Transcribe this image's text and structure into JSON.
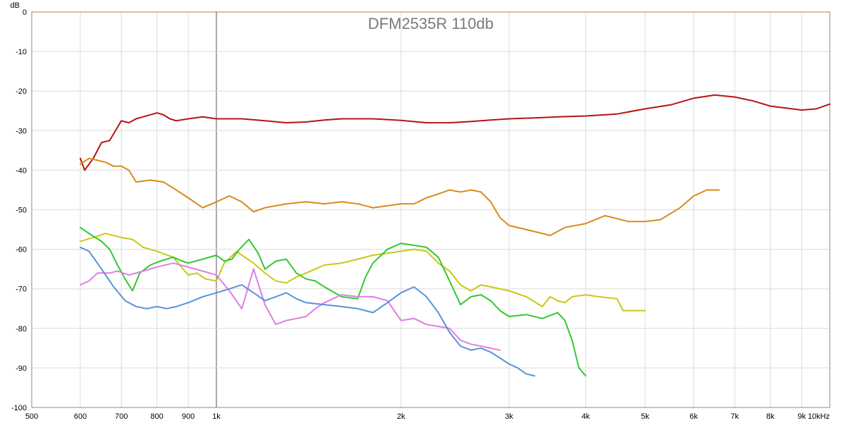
{
  "chart_data": {
    "type": "line",
    "title": "DFM2535R 110db",
    "ylabel": "dB",
    "xscale": "log",
    "xlim": [
      500,
      10000
    ],
    "ylim": [
      -100,
      0
    ],
    "grid": true,
    "x_ticks": [
      {
        "v": 500,
        "label": "500"
      },
      {
        "v": 600,
        "label": "600"
      },
      {
        "v": 700,
        "label": "700"
      },
      {
        "v": 800,
        "label": "800"
      },
      {
        "v": 900,
        "label": "900"
      },
      {
        "v": 1000,
        "label": "1k"
      },
      {
        "v": 2000,
        "label": "2k"
      },
      {
        "v": 3000,
        "label": "3k"
      },
      {
        "v": 4000,
        "label": "4k"
      },
      {
        "v": 5000,
        "label": "5k"
      },
      {
        "v": 6000,
        "label": "6k"
      },
      {
        "v": 7000,
        "label": "7k"
      },
      {
        "v": 8000,
        "label": "8k"
      },
      {
        "v": 9000,
        "label": "9k"
      },
      {
        "v": 10000,
        "label": "10kHz"
      }
    ],
    "y_ticks": [
      {
        "v": 0,
        "label": "0"
      },
      {
        "v": -10,
        "label": "-10"
      },
      {
        "v": -20,
        "label": "-20"
      },
      {
        "v": -30,
        "label": "-30"
      },
      {
        "v": -40,
        "label": "-40"
      },
      {
        "v": -50,
        "label": "-50"
      },
      {
        "v": -60,
        "label": "-60"
      },
      {
        "v": -70,
        "label": "-70"
      },
      {
        "v": -80,
        "label": "-80"
      },
      {
        "v": -90,
        "label": "-90"
      },
      {
        "v": -100,
        "label": "-100"
      }
    ],
    "series": [
      {
        "color": "#b41414",
        "points": [
          [
            600,
            -37
          ],
          [
            610,
            -40
          ],
          [
            630,
            -37
          ],
          [
            650,
            -33
          ],
          [
            670,
            -32.5
          ],
          [
            700,
            -27.5
          ],
          [
            720,
            -28
          ],
          [
            740,
            -27
          ],
          [
            760,
            -26.5
          ],
          [
            780,
            -26
          ],
          [
            800,
            -25.5
          ],
          [
            820,
            -26
          ],
          [
            840,
            -27
          ],
          [
            860,
            -27.5
          ],
          [
            900,
            -27
          ],
          [
            950,
            -26.5
          ],
          [
            1000,
            -27
          ],
          [
            1100,
            -27
          ],
          [
            1200,
            -27.5
          ],
          [
            1300,
            -28
          ],
          [
            1400,
            -27.8
          ],
          [
            1500,
            -27.3
          ],
          [
            1600,
            -27
          ],
          [
            1700,
            -27
          ],
          [
            1800,
            -27
          ],
          [
            1900,
            -27.2
          ],
          [
            2000,
            -27.4
          ],
          [
            2200,
            -28
          ],
          [
            2400,
            -28
          ],
          [
            2600,
            -27.7
          ],
          [
            2800,
            -27.3
          ],
          [
            3000,
            -27
          ],
          [
            3300,
            -26.8
          ],
          [
            3600,
            -26.5
          ],
          [
            4000,
            -26.3
          ],
          [
            4500,
            -25.8
          ],
          [
            5000,
            -24.5
          ],
          [
            5500,
            -23.5
          ],
          [
            6000,
            -21.8
          ],
          [
            6500,
            -21
          ],
          [
            7000,
            -21.5
          ],
          [
            7500,
            -22.5
          ],
          [
            8000,
            -23.8
          ],
          [
            9000,
            -24.8
          ],
          [
            9500,
            -24.5
          ],
          [
            10000,
            -23.3
          ]
        ]
      },
      {
        "color": "#d98a18",
        "points": [
          [
            600,
            -38.5
          ],
          [
            620,
            -37
          ],
          [
            640,
            -37.5
          ],
          [
            660,
            -38
          ],
          [
            680,
            -39
          ],
          [
            700,
            -39
          ],
          [
            720,
            -40
          ],
          [
            740,
            -43
          ],
          [
            780,
            -42.5
          ],
          [
            820,
            -43
          ],
          [
            850,
            -44.5
          ],
          [
            880,
            -46
          ],
          [
            910,
            -47.5
          ],
          [
            950,
            -49.5
          ],
          [
            1000,
            -48
          ],
          [
            1050,
            -46.5
          ],
          [
            1100,
            -48
          ],
          [
            1150,
            -50.5
          ],
          [
            1200,
            -49.5
          ],
          [
            1300,
            -48.5
          ],
          [
            1400,
            -48
          ],
          [
            1500,
            -48.5
          ],
          [
            1600,
            -48
          ],
          [
            1700,
            -48.5
          ],
          [
            1800,
            -49.5
          ],
          [
            1900,
            -49
          ],
          [
            2000,
            -48.5
          ],
          [
            2100,
            -48.5
          ],
          [
            2200,
            -47
          ],
          [
            2300,
            -46
          ],
          [
            2400,
            -45
          ],
          [
            2500,
            -45.5
          ],
          [
            2600,
            -45
          ],
          [
            2700,
            -45.5
          ],
          [
            2800,
            -48
          ],
          [
            2900,
            -52
          ],
          [
            3000,
            -54
          ],
          [
            3200,
            -55
          ],
          [
            3400,
            -56
          ],
          [
            3500,
            -56.5
          ],
          [
            3700,
            -54.5
          ],
          [
            4000,
            -53.5
          ],
          [
            4300,
            -51.5
          ],
          [
            4700,
            -53
          ],
          [
            5000,
            -53
          ],
          [
            5300,
            -52.5
          ],
          [
            5700,
            -49.5
          ],
          [
            6000,
            -46.5
          ],
          [
            6300,
            -45
          ],
          [
            6600,
            -45
          ]
        ]
      },
      {
        "color": "#c8c814",
        "points": [
          [
            600,
            -58
          ],
          [
            630,
            -57
          ],
          [
            660,
            -56
          ],
          [
            700,
            -57
          ],
          [
            730,
            -57.5
          ],
          [
            760,
            -59.5
          ],
          [
            800,
            -60.5
          ],
          [
            850,
            -62
          ],
          [
            900,
            -66.5
          ],
          [
            930,
            -66
          ],
          [
            960,
            -67.5
          ],
          [
            1000,
            -68
          ],
          [
            1030,
            -63.5
          ],
          [
            1080,
            -60.5
          ],
          [
            1100,
            -61.5
          ],
          [
            1150,
            -63.5
          ],
          [
            1200,
            -66
          ],
          [
            1250,
            -68
          ],
          [
            1300,
            -68.5
          ],
          [
            1350,
            -67
          ],
          [
            1400,
            -66
          ],
          [
            1500,
            -64
          ],
          [
            1600,
            -63.5
          ],
          [
            1700,
            -62.5
          ],
          [
            1800,
            -61.5
          ],
          [
            1900,
            -61
          ],
          [
            2000,
            -60.5
          ],
          [
            2100,
            -60
          ],
          [
            2200,
            -60.5
          ],
          [
            2300,
            -63.5
          ],
          [
            2400,
            -65.5
          ],
          [
            2500,
            -69
          ],
          [
            2600,
            -70.5
          ],
          [
            2700,
            -69
          ],
          [
            2800,
            -69.5
          ],
          [
            3000,
            -70.5
          ],
          [
            3200,
            -72
          ],
          [
            3400,
            -74.5
          ],
          [
            3500,
            -72
          ],
          [
            3600,
            -73
          ],
          [
            3700,
            -73.5
          ],
          [
            3800,
            -72
          ],
          [
            4000,
            -71.5
          ],
          [
            4200,
            -72
          ],
          [
            4500,
            -72.5
          ],
          [
            4600,
            -75.5
          ],
          [
            4800,
            -75.5
          ],
          [
            5000,
            -75.5
          ]
        ]
      },
      {
        "color": "#32c832",
        "points": [
          [
            600,
            -54.5
          ],
          [
            620,
            -56
          ],
          [
            650,
            -58
          ],
          [
            670,
            -60
          ],
          [
            690,
            -64
          ],
          [
            710,
            -67.5
          ],
          [
            730,
            -70.5
          ],
          [
            750,
            -66
          ],
          [
            780,
            -64
          ],
          [
            810,
            -63
          ],
          [
            850,
            -62
          ],
          [
            880,
            -63
          ],
          [
            900,
            -63.5
          ],
          [
            950,
            -62.5
          ],
          [
            1000,
            -61.5
          ],
          [
            1030,
            -63
          ],
          [
            1060,
            -62.5
          ],
          [
            1090,
            -60
          ],
          [
            1130,
            -57.5
          ],
          [
            1170,
            -61
          ],
          [
            1200,
            -65
          ],
          [
            1250,
            -63
          ],
          [
            1300,
            -62.5
          ],
          [
            1350,
            -66
          ],
          [
            1400,
            -67.5
          ],
          [
            1450,
            -68
          ],
          [
            1500,
            -69.5
          ],
          [
            1600,
            -72
          ],
          [
            1700,
            -72.5
          ],
          [
            1750,
            -67
          ],
          [
            1800,
            -63.5
          ],
          [
            1900,
            -60
          ],
          [
            2000,
            -58.5
          ],
          [
            2100,
            -59
          ],
          [
            2200,
            -59.5
          ],
          [
            2300,
            -62
          ],
          [
            2400,
            -68
          ],
          [
            2500,
            -74
          ],
          [
            2600,
            -72
          ],
          [
            2700,
            -71.5
          ],
          [
            2800,
            -73
          ],
          [
            2900,
            -75.5
          ],
          [
            3000,
            -77
          ],
          [
            3200,
            -76.5
          ],
          [
            3400,
            -77.5
          ],
          [
            3600,
            -76
          ],
          [
            3700,
            -78
          ],
          [
            3800,
            -83
          ],
          [
            3900,
            -90
          ],
          [
            4000,
            -92
          ]
        ]
      },
      {
        "color": "#e07ee0",
        "points": [
          [
            600,
            -69
          ],
          [
            620,
            -68
          ],
          [
            640,
            -66
          ],
          [
            670,
            -66
          ],
          [
            690,
            -65.5
          ],
          [
            720,
            -66.5
          ],
          [
            760,
            -65.5
          ],
          [
            800,
            -64.5
          ],
          [
            850,
            -63.5
          ],
          [
            900,
            -64.5
          ],
          [
            950,
            -65.5
          ],
          [
            1000,
            -66.5
          ],
          [
            1050,
            -70.5
          ],
          [
            1100,
            -75
          ],
          [
            1150,
            -65
          ],
          [
            1200,
            -74
          ],
          [
            1250,
            -79
          ],
          [
            1300,
            -78
          ],
          [
            1350,
            -77.5
          ],
          [
            1400,
            -77
          ],
          [
            1450,
            -75
          ],
          [
            1500,
            -73.5
          ],
          [
            1600,
            -71.5
          ],
          [
            1700,
            -72
          ],
          [
            1800,
            -72
          ],
          [
            1900,
            -73
          ],
          [
            2000,
            -78
          ],
          [
            2100,
            -77.5
          ],
          [
            2200,
            -79
          ],
          [
            2300,
            -79.5
          ],
          [
            2400,
            -80
          ],
          [
            2500,
            -83
          ],
          [
            2600,
            -84
          ],
          [
            2700,
            -84.5
          ],
          [
            2800,
            -85
          ],
          [
            2900,
            -85.5
          ]
        ]
      },
      {
        "color": "#5a92d8",
        "points": [
          [
            600,
            -59.5
          ],
          [
            620,
            -60.5
          ],
          [
            650,
            -65
          ],
          [
            680,
            -69.5
          ],
          [
            710,
            -73
          ],
          [
            740,
            -74.5
          ],
          [
            770,
            -75
          ],
          [
            800,
            -74.5
          ],
          [
            830,
            -75
          ],
          [
            860,
            -74.5
          ],
          [
            900,
            -73.5
          ],
          [
            950,
            -72
          ],
          [
            1000,
            -71
          ],
          [
            1050,
            -70
          ],
          [
            1100,
            -69
          ],
          [
            1150,
            -71
          ],
          [
            1200,
            -73
          ],
          [
            1250,
            -72
          ],
          [
            1300,
            -71
          ],
          [
            1350,
            -72.5
          ],
          [
            1400,
            -73.5
          ],
          [
            1500,
            -74
          ],
          [
            1600,
            -74.5
          ],
          [
            1700,
            -75
          ],
          [
            1800,
            -76
          ],
          [
            1900,
            -73.5
          ],
          [
            2000,
            -71
          ],
          [
            2100,
            -69.5
          ],
          [
            2200,
            -72
          ],
          [
            2300,
            -76
          ],
          [
            2400,
            -81
          ],
          [
            2500,
            -84.5
          ],
          [
            2600,
            -85.5
          ],
          [
            2700,
            -85
          ],
          [
            2800,
            -86
          ],
          [
            2900,
            -87.5
          ],
          [
            3000,
            -89
          ],
          [
            3100,
            -90
          ],
          [
            3200,
            -91.5
          ],
          [
            3300,
            -92
          ]
        ]
      }
    ]
  }
}
